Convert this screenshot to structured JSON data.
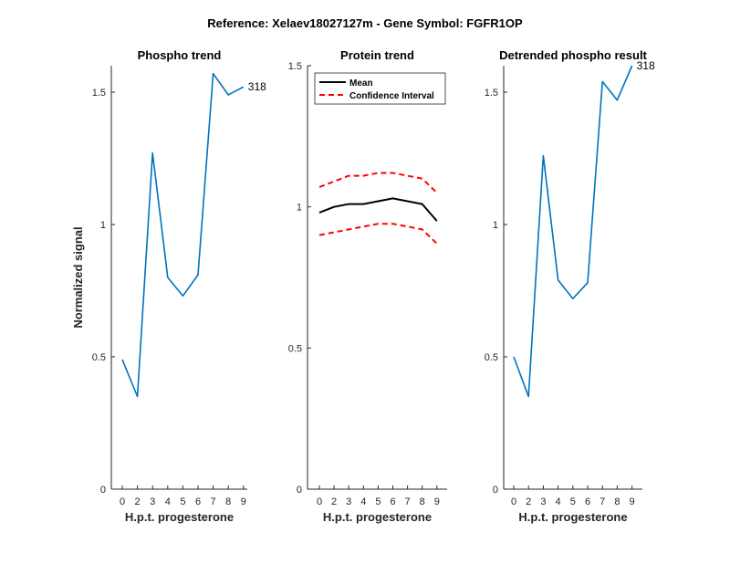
{
  "figure": {
    "suptitle": "Reference:  Xelaev18027127m - Gene Symbol:  FGFR1OP"
  },
  "chart_data": [
    {
      "type": "line",
      "title": "Phospho trend",
      "xlabel": "H.p.t. progesterone",
      "ylabel": "Normalized signal",
      "x": [
        0,
        2,
        3,
        4,
        5,
        6,
        7,
        8,
        9
      ],
      "xticks": [
        "0",
        "2",
        "3",
        "4",
        "5",
        "6",
        "7",
        "8",
        "9"
      ],
      "ylim": [
        0,
        1.6
      ],
      "yticks": [
        "0",
        "0.5",
        "1",
        "1.5"
      ],
      "yticks_values": [
        0,
        0.5,
        1,
        1.5
      ],
      "series": [
        {
          "values": [
            0.49,
            0.35,
            1.27,
            0.8,
            0.73,
            0.81,
            1.57,
            1.49,
            1.52
          ],
          "color": "#0072BD"
        }
      ],
      "annotation": "318"
    },
    {
      "type": "line",
      "title": "Protein trend",
      "xlabel": "H.p.t. progesterone",
      "ylabel": "",
      "x": [
        0,
        2,
        3,
        4,
        5,
        6,
        7,
        8,
        9
      ],
      "xticks": [
        "0",
        "2",
        "3",
        "4",
        "5",
        "6",
        "7",
        "8",
        "9"
      ],
      "ylim": [
        0,
        1.5
      ],
      "yticks": [
        "0",
        "0.5",
        "1",
        "1.5"
      ],
      "yticks_values": [
        0,
        0.5,
        1,
        1.5
      ],
      "legend_position": "top-right",
      "series": [
        {
          "name": "Mean",
          "values": [
            0.98,
            1.0,
            1.01,
            1.01,
            1.02,
            1.03,
            1.02,
            1.01,
            0.95
          ],
          "color": "#000000",
          "style": "solid"
        },
        {
          "name": "Confidence Interval",
          "values": [
            1.07,
            1.09,
            1.11,
            1.11,
            1.12,
            1.12,
            1.11,
            1.1,
            1.05
          ],
          "color": "#FF0000",
          "style": "dashed"
        },
        {
          "values": [
            0.9,
            0.91,
            0.92,
            0.93,
            0.94,
            0.94,
            0.93,
            0.92,
            0.87
          ],
          "color": "#FF0000",
          "style": "dashed"
        }
      ]
    },
    {
      "type": "line",
      "title": "Detrended phospho result",
      "xlabel": "H.p.t. progesterone",
      "ylabel": "",
      "x": [
        0,
        2,
        3,
        4,
        5,
        6,
        7,
        8,
        9
      ],
      "xticks": [
        "0",
        "2",
        "3",
        "4",
        "5",
        "6",
        "7",
        "8",
        "9"
      ],
      "ylim": [
        0,
        1.6
      ],
      "yticks": [
        "0",
        "0.5",
        "1",
        "1.5"
      ],
      "yticks_values": [
        0,
        0.5,
        1,
        1.5
      ],
      "series": [
        {
          "values": [
            0.5,
            0.35,
            1.26,
            0.79,
            0.72,
            0.78,
            1.54,
            1.47,
            1.6
          ],
          "color": "#0072BD"
        }
      ],
      "annotation": "318"
    }
  ]
}
